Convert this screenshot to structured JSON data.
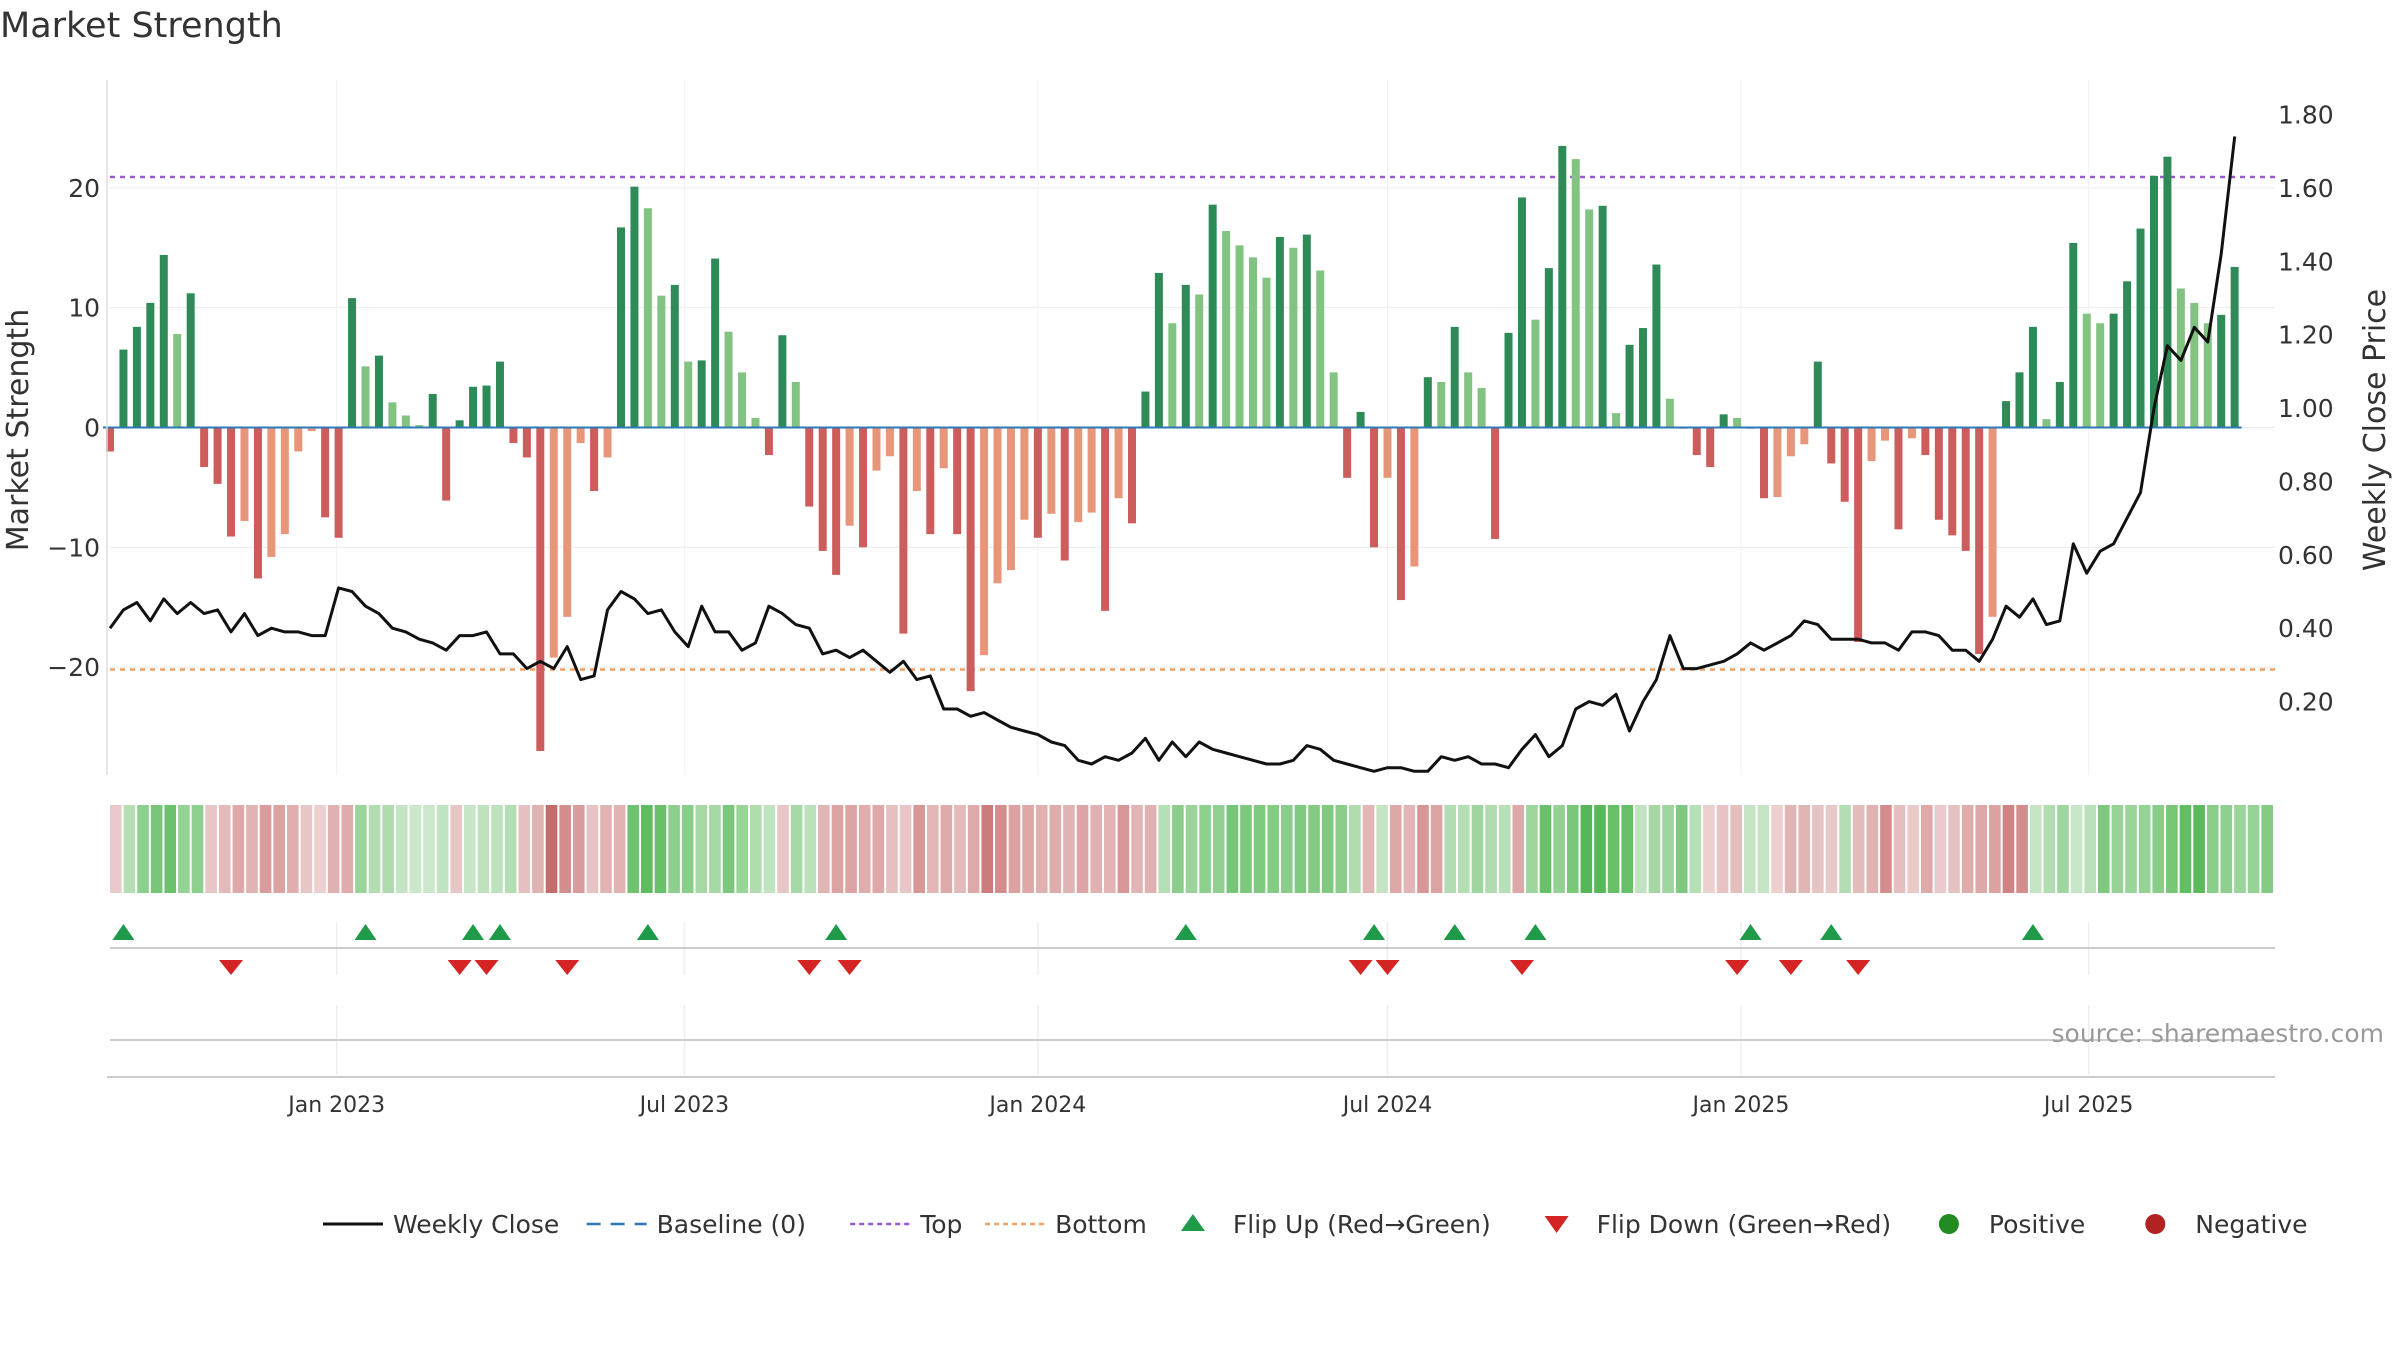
{
  "chart_data": {
    "type": "bar",
    "title": "Market Strength",
    "ylabel": "Market Strength",
    "y2label": "Weekly Close Price",
    "ylim": [
      -29,
      29
    ],
    "y2lim": [
      0.0,
      1.8941
    ],
    "yticks": [
      -20,
      -10,
      0,
      10,
      20
    ],
    "ytick_labels": [
      "−20",
      "−10",
      "0",
      "10",
      "20"
    ],
    "y2ticks": [
      0.2,
      0.4,
      0.6,
      0.8,
      1.0,
      1.2,
      1.4,
      1.6,
      1.8
    ],
    "y2tick_labels": [
      "0.20",
      "0.40",
      "0.60",
      "0.80",
      "1.00",
      "1.20",
      "1.40",
      "1.60",
      "1.80"
    ],
    "x_start": "2022-09-05",
    "week_step": 1,
    "x_range": [
      "2022-09-05",
      "2025-10-06"
    ],
    "xticks": [
      {
        "date": "2023-01-01",
        "label": "Jan 2023"
      },
      {
        "date": "2023-07-01",
        "label": "Jul 2023"
      },
      {
        "date": "2024-01-01",
        "label": "Jan 2024"
      },
      {
        "date": "2024-07-01",
        "label": "Jul 2024"
      },
      {
        "date": "2025-01-01",
        "label": "Jan 2025"
      },
      {
        "date": "2025-07-01",
        "label": "Jul 2025"
      }
    ],
    "top_line": 20.9,
    "bottom_line": -20.2,
    "grid": true,
    "legend_position": "bottom",
    "values": [
      -2,
      6.5,
      8.4,
      10.4,
      14.4,
      7.8,
      11.2,
      -3.3,
      -4.7,
      -9.1,
      -7.8,
      -12.6,
      -10.8,
      -8.9,
      -2,
      -0.3,
      -7.5,
      -9.2,
      10.8,
      5.1,
      6,
      2.1,
      1,
      0.2,
      2.8,
      -6.1,
      0.6,
      3.4,
      3.5,
      5.5,
      -1.3,
      -2.5,
      -27,
      -19.2,
      -15.8,
      -1.3,
      -5.3,
      -2.5,
      16.7,
      20.1,
      18.3,
      11,
      11.9,
      5.5,
      5.6,
      14.1,
      8,
      4.6,
      0.8,
      -2.3,
      7.7,
      3.8,
      -6.6,
      -10.3,
      -12.3,
      -8.2,
      -10,
      -3.6,
      -2.4,
      -17.2,
      -5.3,
      -8.9,
      -3.4,
      -8.9,
      -22,
      -19,
      -13,
      -11.9,
      -7.7,
      -9.2,
      -7.2,
      -11.1,
      -7.9,
      -7.1,
      -15.3,
      -5.9,
      -8,
      3,
      12.9,
      8.7,
      11.9,
      11.1,
      18.6,
      16.4,
      15.2,
      14.2,
      12.5,
      15.9,
      15,
      16.1,
      13.1,
      4.6,
      -4.2,
      1.3,
      -10,
      -4.2,
      -14.4,
      -11.6,
      4.2,
      3.8,
      8.4,
      4.6,
      3.3,
      -9.3,
      7.9,
      19.2,
      9,
      13.3,
      23.5,
      22.4,
      18.2,
      18.5,
      1.2,
      6.9,
      8.3,
      13.6,
      2.4,
      -0.1,
      -2.3,
      -3.3,
      1.1,
      0.8,
      -0.1,
      -5.9,
      -5.8,
      -2.4,
      -1.4,
      5.5,
      -3,
      -6.2,
      -17.9,
      -2.8,
      -1.1,
      -8.5,
      -0.9,
      -2.3,
      -7.7,
      -9,
      -10.3,
      -18.9,
      -15.8,
      2.2,
      4.6,
      8.4,
      0.7,
      3.8,
      15.4,
      9.5,
      8.7,
      9.5,
      12.2,
      16.6,
      21,
      22.6,
      11.6,
      10.4,
      8.7,
      9.4,
      13.4
    ],
    "close": [
      0.4,
      0.45,
      0.47,
      0.42,
      0.48,
      0.44,
      0.47,
      0.44,
      0.45,
      0.39,
      0.44,
      0.38,
      0.4,
      0.39,
      0.39,
      0.38,
      0.38,
      0.51,
      0.5,
      0.46,
      0.44,
      0.4,
      0.39,
      0.37,
      0.36,
      0.34,
      0.38,
      0.38,
      0.39,
      0.33,
      0.33,
      0.29,
      0.31,
      0.29,
      0.35,
      0.26,
      0.27,
      0.45,
      0.5,
      0.48,
      0.44,
      0.45,
      0.39,
      0.35,
      0.46,
      0.39,
      0.39,
      0.34,
      0.36,
      0.46,
      0.44,
      0.41,
      0.4,
      0.33,
      0.34,
      0.32,
      0.34,
      0.31,
      0.28,
      0.31,
      0.26,
      0.27,
      0.18,
      0.18,
      0.16,
      0.17,
      0.15,
      0.13,
      0.12,
      0.11,
      0.09,
      0.08,
      0.04,
      0.03,
      0.05,
      0.04,
      0.06,
      0.1,
      0.04,
      0.09,
      0.05,
      0.09,
      0.07,
      0.06,
      0.05,
      0.04,
      0.03,
      0.03,
      0.04,
      0.08,
      0.07,
      0.04,
      0.03,
      0.02,
      0.01,
      0.02,
      0.02,
      0.01,
      0.01,
      0.05,
      0.04,
      0.05,
      0.03,
      0.03,
      0.02,
      0.07,
      0.11,
      0.05,
      0.08,
      0.18,
      0.2,
      0.19,
      0.22,
      0.12,
      0.2,
      0.26,
      0.38,
      0.29,
      0.29,
      0.3,
      0.31,
      0.33,
      0.36,
      0.34,
      0.36,
      0.38,
      0.42,
      0.41,
      0.37,
      0.37,
      0.37,
      0.36,
      0.36,
      0.34,
      0.39,
      0.39,
      0.38,
      0.34,
      0.34,
      0.31,
      0.37,
      0.46,
      0.43,
      0.48,
      0.41,
      0.42,
      0.63,
      0.55,
      0.61,
      0.63,
      0.7,
      0.77,
      1.0,
      1.17,
      1.13,
      1.22,
      1.18,
      1.42,
      1.74
    ],
    "flip_up": [
      "2022-09-12",
      "2023-01-16",
      "2023-03-13",
      "2023-03-27",
      "2023-06-12",
      "2023-09-18",
      "2024-03-18",
      "2024-06-24",
      "2024-08-05",
      "2024-09-16",
      "2025-01-06",
      "2025-02-17",
      "2025-06-02"
    ],
    "flip_down": [
      "2022-11-07",
      "2023-03-06",
      "2023-03-20",
      "2023-05-01",
      "2023-09-04",
      "2023-09-25",
      "2024-06-17",
      "2024-07-01",
      "2024-09-09",
      "2024-12-30",
      "2025-01-27",
      "2025-03-03"
    ],
    "strip_colors": [
      "#e8c9c9",
      "#b6dfb6",
      "#8dcf8d",
      "#77c677",
      "#6cc16c",
      "#95d395",
      "#8dcf8d",
      "#e8c6c6",
      "#e4bbbb",
      "#dea9a9",
      "#e1b3b3",
      "#d99b9b",
      "#dca2a2",
      "#e0aeae",
      "#e8c6c6",
      "#eccfcf",
      "#e1b1b1",
      "#dfabab",
      "#99d499",
      "#b2ddb2",
      "#afdbaf",
      "#c4e5c4",
      "#c9e7c9",
      "#cbe8cb",
      "#c0e3c0",
      "#e8c6c6",
      "#c7e6c7",
      "#bde2bd",
      "#bde2bd",
      "#b3ddb3",
      "#e6c0c0",
      "#e1b2b2",
      "#c56b6b",
      "#d38d8d",
      "#d99b9b",
      "#e7c3c3",
      "#e1b3b3",
      "#e1b3b3",
      "#6fc26f",
      "#5fbb5f",
      "#69c069",
      "#8dcf8d",
      "#88cd88",
      "#a5d8a5",
      "#a5d8a5",
      "#7bc77b",
      "#99d499",
      "#b0dcb0",
      "#c0e3c0",
      "#e8c6c6",
      "#a7d9a7",
      "#bbe1bb",
      "#e2b5b5",
      "#dca3a3",
      "#dca3a3",
      "#e0adad",
      "#dea8a8",
      "#e6c0c0",
      "#e8c6c6",
      "#d79797",
      "#e2b6b6",
      "#dea9a9",
      "#e3b9b9",
      "#dea9a9",
      "#cd7c7c",
      "#d38d8d",
      "#dca2a2",
      "#dea8a8",
      "#e1b1b1",
      "#dfabab",
      "#e1b3b3",
      "#dca4a4",
      "#e1b1b1",
      "#e2b4b4",
      "#d79797",
      "#e2b5b5",
      "#e1b1b1",
      "#b5dfb5",
      "#8bce8b",
      "#9ad49a",
      "#8dcf8d",
      "#90d090",
      "#77c677",
      "#7dc87d",
      "#80c980",
      "#84cb84",
      "#8acd8a",
      "#7fc87f",
      "#83ca83",
      "#80c980",
      "#8ace8a",
      "#b0dcb0",
      "#e2b6b6",
      "#c4e4c4",
      "#dea8a8",
      "#e2b6b6",
      "#d79797",
      "#dca3a3",
      "#b2ddb2",
      "#b4deb4",
      "#9fd69f",
      "#b0dcb0",
      "#b8e0b8",
      "#dea8a8",
      "#9dd59d",
      "#6ac06a",
      "#93d193",
      "#7ac77a",
      "#56b756",
      "#58b858",
      "#68bf68",
      "#67bf67",
      "#c1e3c1",
      "#a4d7a4",
      "#9fd69f",
      "#7fc87f",
      "#b5dfb5",
      "#eccfcf",
      "#e7c3c3",
      "#e5bebe",
      "#c4e4c4",
      "#c5e5c5",
      "#eccfcf",
      "#e2b5b5",
      "#e2b5b5",
      "#e7c3c3",
      "#e9c8c8",
      "#b3ddb3",
      "#e4bbbb",
      "#e1b2b2",
      "#d38d8d",
      "#e5bfbf",
      "#eac9c9",
      "#dea9a9",
      "#eacaca",
      "#e6c1c1",
      "#dfabab",
      "#dea8a8",
      "#dca2a2",
      "#d08383",
      "#d38d8d",
      "#c4e4c4",
      "#b0dcb0",
      "#9fd69f",
      "#c8e7c8",
      "#bbe1bb",
      "#7fc87f",
      "#95d395",
      "#99d499",
      "#95d395",
      "#89cd89",
      "#76c676",
      "#63bd63",
      "#5cba5c",
      "#8ace8a",
      "#8fcf8f",
      "#99d499",
      "#95d395",
      "#85cb85"
    ],
    "series": [
      {
        "name": "Weekly Close",
        "color": "#111111"
      },
      {
        "name": "Baseline (0)",
        "color": "#2e78b5"
      },
      {
        "name": "Top",
        "color": "#9b59d0"
      },
      {
        "name": "Bottom",
        "color": "#f0a060"
      },
      {
        "name": "Flip Up (Red→Green)",
        "color": "#1e9a48"
      },
      {
        "name": "Flip Down (Green→Red)",
        "color": "#d42424"
      },
      {
        "name": "Positive",
        "color": "#228b22"
      },
      {
        "name": "Negative",
        "color": "#b22222"
      }
    ],
    "colors": {
      "pos_dark": "#2e8b57",
      "pos_light": "#82c382",
      "neg_dark": "#cd5c5c",
      "neg_light": "#e8967a"
    },
    "source": "source: sharemaestro.com"
  }
}
